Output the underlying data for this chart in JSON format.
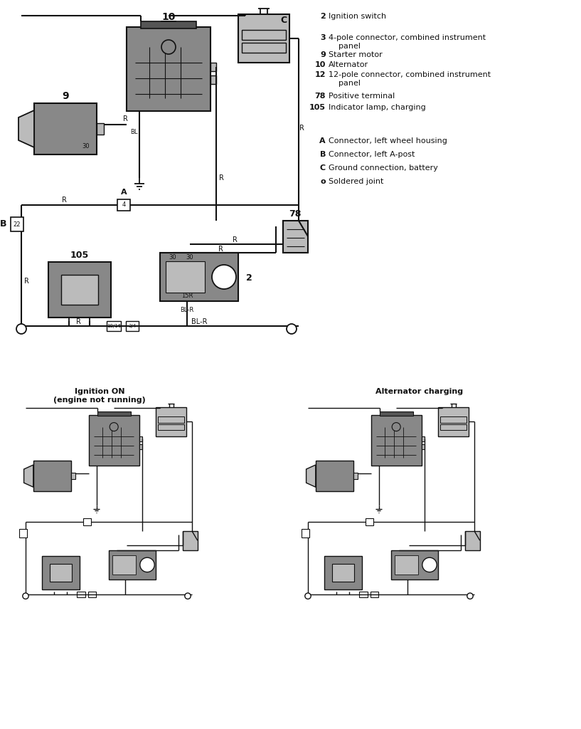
{
  "bg_color": "#ffffff",
  "line_color": "#111111",
  "gray_med": "#888888",
  "gray_light": "#bbbbbb",
  "gray_dark": "#555555",
  "legend_items": [
    [
      "2",
      "Ignition switch"
    ],
    [
      "3",
      "4-pole connector, combined instrument\n    panel"
    ],
    [
      "9",
      "Starter motor"
    ],
    [
      "10",
      "Alternator"
    ],
    [
      "12",
      "12-pole connector, combined instrument\n    panel"
    ],
    [
      "78",
      "Positive terminal"
    ],
    [
      "105",
      "Indicator lamp, charging"
    ]
  ],
  "legend_items2": [
    [
      "A",
      "Connector, left wheel housing"
    ],
    [
      "B",
      "Connector, left A-post"
    ],
    [
      "C",
      "Ground connection, battery"
    ],
    [
      "o",
      "Soldered joint"
    ]
  ],
  "title_left": "Ignition ON\n(engine not running)",
  "title_right": "Alternator charging"
}
